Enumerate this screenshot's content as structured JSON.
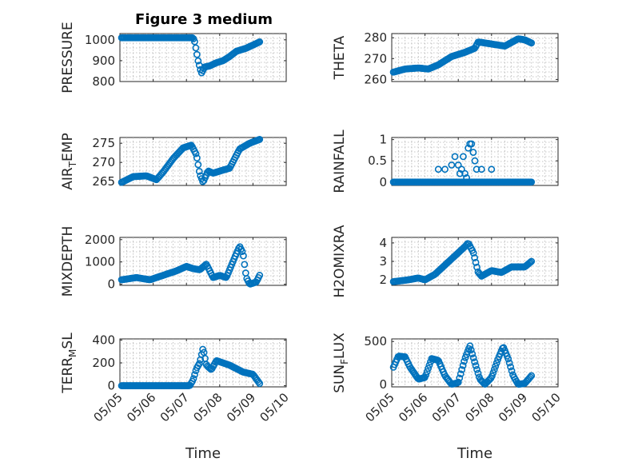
{
  "figure_title": "Figure 3 medium",
  "chart_data": [
    {
      "type": "scatter",
      "title": "Figure 3 medium",
      "ylabel": "PRESSURE",
      "yticks": [
        "800",
        "900",
        "1000"
      ],
      "ylim": [
        800,
        1030
      ],
      "xlim": [
        0,
        5
      ],
      "xticklabels": [
        "05/05",
        "05/06",
        "05/07",
        "05/08",
        "05/09",
        "05/10"
      ],
      "xlabel": "",
      "grid": true,
      "keys": [
        [
          0.05,
          1010
        ],
        [
          0.3,
          1010
        ],
        [
          0.8,
          1010
        ],
        [
          1.3,
          1010
        ],
        [
          1.8,
          1010
        ],
        [
          2.2,
          1010
        ],
        [
          2.25,
          990
        ],
        [
          2.35,
          900
        ],
        [
          2.45,
          840
        ],
        [
          2.55,
          870
        ],
        [
          2.7,
          875
        ],
        [
          2.9,
          890
        ],
        [
          3.1,
          900
        ],
        [
          3.3,
          920
        ],
        [
          3.5,
          945
        ],
        [
          3.8,
          960
        ],
        [
          4.2,
          990
        ]
      ]
    },
    {
      "type": "scatter",
      "ylabel": "THETA",
      "yticks": [
        "260",
        "270",
        "280"
      ],
      "ylim": [
        259,
        282
      ],
      "xlim": [
        0,
        5
      ],
      "xticklabels": [
        "05/05",
        "05/06",
        "05/07",
        "05/08",
        "05/09",
        "05/10"
      ],
      "xlabel": "",
      "grid": true,
      "keys": [
        [
          0.05,
          263.5
        ],
        [
          0.4,
          265
        ],
        [
          0.8,
          265.5
        ],
        [
          1.1,
          265
        ],
        [
          1.4,
          267
        ],
        [
          1.8,
          271
        ],
        [
          2.2,
          273
        ],
        [
          2.5,
          275
        ],
        [
          2.6,
          278
        ],
        [
          3.0,
          277
        ],
        [
          3.4,
          276
        ],
        [
          3.8,
          279.5
        ],
        [
          4.0,
          279
        ],
        [
          4.2,
          277.5
        ]
      ]
    },
    {
      "type": "scatter",
      "ylabel": "AIR",
      "ylabel_sub": "T",
      "ylabel_rest": "EMP",
      "yticks": [
        "265",
        "270",
        "275"
      ],
      "ylim": [
        264,
        276.5
      ],
      "xlim": [
        0,
        5
      ],
      "xticklabels": [
        "05/05",
        "05/06",
        "05/07",
        "05/08",
        "05/09",
        "05/10"
      ],
      "xlabel": "",
      "grid": true,
      "keys": [
        [
          0.05,
          264.8
        ],
        [
          0.4,
          266.3
        ],
        [
          0.8,
          266.5
        ],
        [
          1.1,
          265.5
        ],
        [
          1.3,
          267.5
        ],
        [
          1.6,
          271
        ],
        [
          1.9,
          273.8
        ],
        [
          2.15,
          274.5
        ],
        [
          2.3,
          272
        ],
        [
          2.4,
          267
        ],
        [
          2.5,
          264.8
        ],
        [
          2.65,
          267.8
        ],
        [
          2.8,
          267.2
        ],
        [
          3.1,
          268
        ],
        [
          3.3,
          268.5
        ],
        [
          3.45,
          271
        ],
        [
          3.6,
          273.5
        ],
        [
          3.9,
          275
        ],
        [
          4.2,
          276
        ]
      ]
    },
    {
      "type": "scatter",
      "ylabel": "RAINFALL",
      "yticks": [
        "0",
        "0.5",
        "1"
      ],
      "ylim": [
        -0.08,
        1.05
      ],
      "xlim": [
        0,
        5
      ],
      "xticklabels": [
        "05/05",
        "05/06",
        "05/07",
        "05/08",
        "05/09",
        "05/10"
      ],
      "xlabel": "",
      "grid": true,
      "keys": [
        [
          0.05,
          0
        ],
        [
          4.2,
          0
        ]
      ],
      "spikes": [
        [
          1.4,
          0.3
        ],
        [
          1.6,
          0.3
        ],
        [
          1.8,
          0.4
        ],
        [
          1.9,
          0.6
        ],
        [
          2.0,
          0.4
        ],
        [
          2.05,
          0.2
        ],
        [
          2.1,
          0.3
        ],
        [
          2.15,
          0.6
        ],
        [
          2.2,
          0.2
        ],
        [
          2.25,
          0.1
        ],
        [
          2.3,
          0.8
        ],
        [
          2.35,
          0.9
        ],
        [
          2.4,
          0.9
        ],
        [
          2.45,
          0.7
        ],
        [
          2.5,
          0.5
        ],
        [
          2.55,
          0.3
        ],
        [
          2.7,
          0.3
        ],
        [
          3.0,
          0.3
        ]
      ]
    },
    {
      "type": "scatter",
      "ylabel": "MIXDEPTH",
      "yticks": [
        "0",
        "1000",
        "2000"
      ],
      "ylim": [
        -50,
        2100
      ],
      "xlim": [
        0,
        5
      ],
      "xticklabels": [
        "05/05",
        "05/06",
        "05/07",
        "05/08",
        "05/09",
        "05/10"
      ],
      "xlabel": "",
      "grid": true,
      "keys": [
        [
          0.05,
          200
        ],
        [
          0.5,
          300
        ],
        [
          0.9,
          200
        ],
        [
          1.3,
          400
        ],
        [
          1.7,
          600
        ],
        [
          2.0,
          800
        ],
        [
          2.2,
          700
        ],
        [
          2.4,
          650
        ],
        [
          2.6,
          900
        ],
        [
          2.8,
          300
        ],
        [
          3.0,
          400
        ],
        [
          3.2,
          300
        ],
        [
          3.45,
          1200
        ],
        [
          3.6,
          1700
        ],
        [
          3.7,
          1400
        ],
        [
          3.8,
          300
        ],
        [
          3.9,
          0
        ],
        [
          4.1,
          100
        ],
        [
          4.2,
          400
        ]
      ]
    },
    {
      "type": "scatter",
      "ylabel": "H2OMIXRA",
      "yticks": [
        "2",
        "3",
        "4"
      ],
      "ylim": [
        1.7,
        4.3
      ],
      "xlim": [
        0,
        5
      ],
      "xticklabels": [
        "05/05",
        "05/06",
        "05/07",
        "05/08",
        "05/09",
        "05/10"
      ],
      "xlabel": "Time",
      "grid": true,
      "keys": [
        [
          0.05,
          1.9
        ],
        [
          0.5,
          2.0
        ],
        [
          0.8,
          2.1
        ],
        [
          1.0,
          2.0
        ],
        [
          1.3,
          2.3
        ],
        [
          1.6,
          2.8
        ],
        [
          1.9,
          3.3
        ],
        [
          2.2,
          3.8
        ],
        [
          2.3,
          4.0
        ],
        [
          2.45,
          3.5
        ],
        [
          2.6,
          2.4
        ],
        [
          2.7,
          2.2
        ],
        [
          3.0,
          2.5
        ],
        [
          3.3,
          2.4
        ],
        [
          3.6,
          2.7
        ],
        [
          4.0,
          2.7
        ],
        [
          4.2,
          3.0
        ]
      ]
    },
    {
      "type": "scatter",
      "ylabel": "TERR",
      "ylabel_sub": "M",
      "ylabel_rest": "SL",
      "yticks": [
        "0",
        "200",
        "400"
      ],
      "ylim": [
        -10,
        410
      ],
      "xlim": [
        0,
        5
      ],
      "xticklabels": [
        "05/05",
        "05/06",
        "05/07",
        "05/08",
        "05/09",
        "05/10"
      ],
      "xlabel": "Time",
      "grid": true,
      "keys": [
        [
          0.05,
          0
        ],
        [
          2.1,
          0
        ],
        [
          2.2,
          50
        ],
        [
          2.3,
          150
        ],
        [
          2.4,
          200
        ],
        [
          2.5,
          330
        ],
        [
          2.6,
          180
        ],
        [
          2.75,
          140
        ],
        [
          2.9,
          220
        ],
        [
          3.1,
          200
        ],
        [
          3.3,
          180
        ],
        [
          3.5,
          150
        ],
        [
          3.7,
          120
        ],
        [
          4.0,
          100
        ],
        [
          4.1,
          60
        ],
        [
          4.2,
          20
        ]
      ]
    },
    {
      "type": "scatter",
      "ylabel": "SUN",
      "ylabel_sub": "F",
      "ylabel_rest": "LUX",
      "yticks": [
        "0",
        "500"
      ],
      "ylim": [
        -30,
        530
      ],
      "xlim": [
        0,
        5
      ],
      "xticklabels": [
        "05/05",
        "05/06",
        "05/07",
        "05/08",
        "05/09",
        "05/10"
      ],
      "xlabel": "Time",
      "grid": true,
      "keys": [
        [
          0.05,
          200
        ],
        [
          0.2,
          330
        ],
        [
          0.4,
          320
        ],
        [
          0.55,
          200
        ],
        [
          0.8,
          60
        ],
        [
          1.0,
          80
        ],
        [
          1.2,
          300
        ],
        [
          1.4,
          280
        ],
        [
          1.6,
          100
        ],
        [
          1.8,
          0
        ],
        [
          2.0,
          20
        ],
        [
          2.2,
          300
        ],
        [
          2.35,
          450
        ],
        [
          2.5,
          250
        ],
        [
          2.65,
          60
        ],
        [
          2.8,
          0
        ],
        [
          3.0,
          80
        ],
        [
          3.2,
          300
        ],
        [
          3.35,
          440
        ],
        [
          3.5,
          300
        ],
        [
          3.65,
          100
        ],
        [
          3.8,
          0
        ],
        [
          4.0,
          10
        ],
        [
          4.2,
          100
        ]
      ]
    }
  ]
}
